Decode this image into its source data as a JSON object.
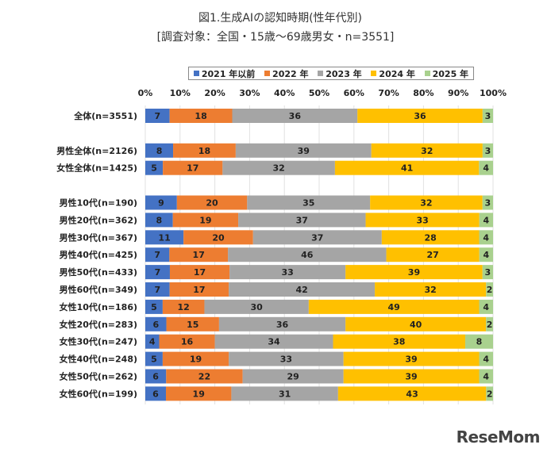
{
  "chart_data": {
    "type": "bar",
    "orientation": "horizontal-stacked-100",
    "title": "図1.生成AIの認知時期(性年代別)",
    "subtitle": "[調査対象：全国・15歳～69歳男女・n=3551]",
    "xlim": [
      0,
      100
    ],
    "x_ticks": [
      "0%",
      "10%",
      "20%",
      "30%",
      "40%",
      "50%",
      "60%",
      "70%",
      "80%",
      "90%",
      "100%"
    ],
    "grid": true,
    "legend_position": "top",
    "series_names": [
      "2021 年以前",
      "2022 年",
      "2023 年",
      "2024 年",
      "2025 年"
    ],
    "colors": [
      "#4472C4",
      "#ED7D31",
      "#A5A5A5",
      "#FFC000",
      "#A9D18E"
    ],
    "categories": [
      "全体(n=3551)",
      "",
      "男性全体(n=2126)",
      "女性全体(n=1425)",
      "",
      "男性10代(n=190)",
      "男性20代(n=362)",
      "男性30代(n=367)",
      "男性40代(n=425)",
      "男性50代(n=433)",
      "男性60代(n=349)",
      "女性10代(n=186)",
      "女性20代(n=283)",
      "女性30代(n=247)",
      "女性40代(n=248)",
      "女性50代(n=262)",
      "女性60代(n=199)"
    ],
    "values": [
      [
        7,
        18,
        36,
        36,
        3
      ],
      null,
      [
        8,
        18,
        39,
        32,
        3
      ],
      [
        5,
        17,
        32,
        41,
        4
      ],
      null,
      [
        9,
        20,
        35,
        32,
        3
      ],
      [
        8,
        19,
        37,
        33,
        4
      ],
      [
        11,
        20,
        37,
        28,
        4
      ],
      [
        7,
        17,
        46,
        27,
        4
      ],
      [
        7,
        17,
        33,
        39,
        3
      ],
      [
        7,
        17,
        42,
        32,
        2
      ],
      [
        5,
        12,
        30,
        49,
        4
      ],
      [
        6,
        15,
        36,
        40,
        2
      ],
      [
        4,
        16,
        34,
        38,
        8
      ],
      [
        5,
        19,
        33,
        39,
        4
      ],
      [
        6,
        22,
        29,
        39,
        4
      ],
      [
        6,
        19,
        31,
        43,
        2
      ]
    ]
  },
  "logo": "ReseMom"
}
